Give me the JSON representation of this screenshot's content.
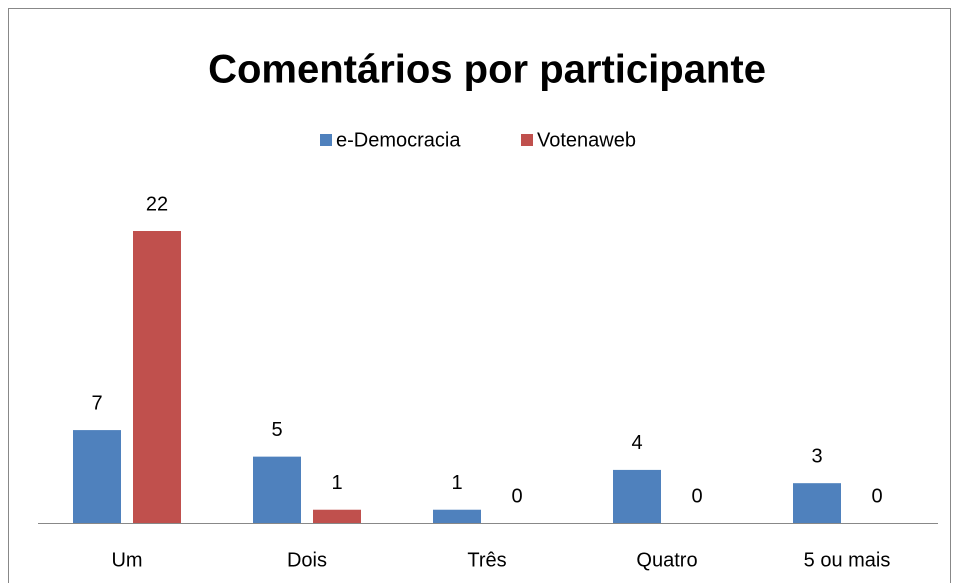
{
  "chart_data": {
    "type": "bar",
    "title": "Comentários por participante",
    "categories": [
      "Um",
      "Dois",
      "Três",
      "Quatro",
      "5 ou mais"
    ],
    "series": [
      {
        "name": "e-Democracia",
        "color": "#4f81bd",
        "values": [
          7,
          5,
          1,
          4,
          3
        ]
      },
      {
        "name": "Votenaweb",
        "color": "#c0504d",
        "values": [
          22,
          1,
          0,
          0,
          0
        ]
      }
    ],
    "legend": "top"
  }
}
